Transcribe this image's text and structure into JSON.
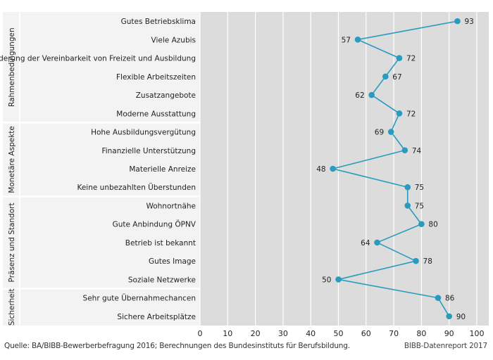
{
  "chart_data": {
    "type": "line",
    "orientation": "horizontal",
    "categories": [
      "Gutes Betriebsklima",
      "Viele Azubis",
      "Förderung der Vereinbarkeit von Freizeit und Ausbildung",
      "Flexible Arbeitszeiten",
      "Zusatzangebote",
      "Moderne Ausstattung",
      "Hohe Ausbildungsvergütung",
      "Finanzielle Unterstützung",
      "Materielle Anreize",
      "Keine unbezahlten Überstunden",
      "Wohnortnähe",
      "Gute Anbindung ÖPNV",
      "Betrieb ist bekannt",
      "Gutes Image",
      "Soziale Netzwerke",
      "Sehr gute Übernahmechancen",
      "Sichere Arbeitsplätze"
    ],
    "values": [
      93,
      57,
      72,
      67,
      62,
      72,
      69,
      74,
      48,
      75,
      75,
      80,
      64,
      78,
      50,
      86,
      90
    ],
    "groups": [
      {
        "label": "Rahmenbedingungen",
        "start": 0,
        "end": 5
      },
      {
        "label": "Monetäre Aspekte",
        "start": 6,
        "end": 9
      },
      {
        "label": "Präsenz und Standort",
        "start": 10,
        "end": 14
      },
      {
        "label": "Sicherheit",
        "start": 15,
        "end": 16
      }
    ],
    "xlim": [
      0,
      100
    ],
    "xticks": [
      0,
      10,
      20,
      30,
      40,
      50,
      60,
      70,
      80,
      90,
      100
    ],
    "grid": true,
    "colors": {
      "line": "#2a9bbf",
      "marker": "#2a9bbf",
      "plot_bg": "#dcdcdc",
      "label_bg": "#f3f3f3",
      "grid": "#ffffff",
      "divider": "#ffffff"
    }
  },
  "footer": {
    "source": "Quelle: BA/BIBB-Bewerberbefragung 2016; Berechnungen des Bundesinstituts für Berufsbildung.",
    "brand": "BIBB-Datenreport 2017"
  }
}
